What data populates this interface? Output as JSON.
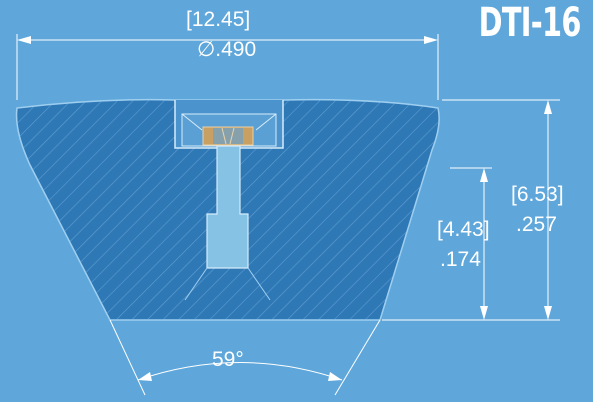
{
  "title": "DTI-16",
  "dimensions": {
    "width_mm": "[12.45]",
    "width_in": "∅.490",
    "overall_height_mm": "[6.53]",
    "overall_height_in": ".257",
    "bore_height_mm": "[4.43]",
    "bore_height_in": ".174",
    "angle": "59°"
  },
  "colors": {
    "background": "#5fa7da",
    "part_fill": "#2f78b6",
    "insert_gold": "#c8a063",
    "line": "#ffffff"
  }
}
